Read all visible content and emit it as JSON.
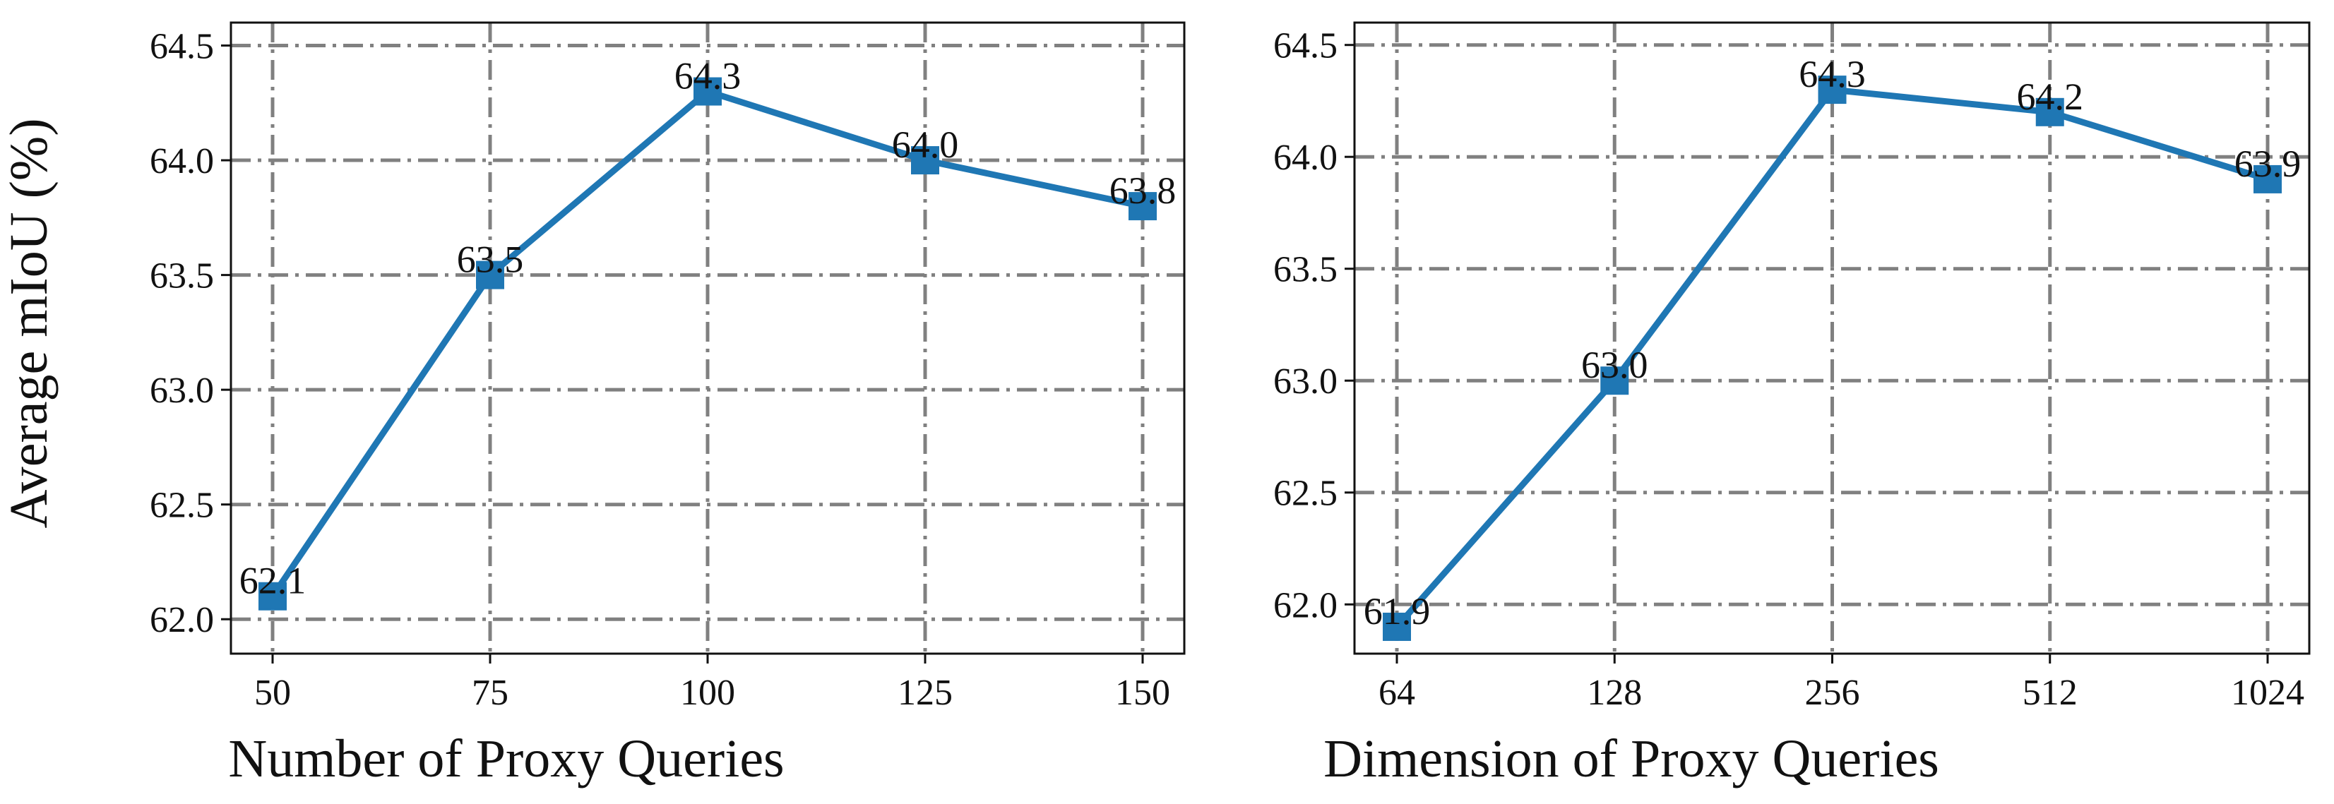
{
  "figure": {
    "ylabel": "Average mIoU (%)"
  },
  "chart_data": [
    {
      "type": "line",
      "title": "",
      "xlabel": "Number of Proxy Queries",
      "ylabel": "Average mIoU (%)",
      "categories": [
        "50",
        "75",
        "100",
        "125",
        "150"
      ],
      "series": [
        {
          "name": "Average mIoU",
          "values": [
            62.1,
            63.5,
            64.3,
            64.0,
            63.8
          ],
          "labels": [
            "62.1",
            "63.5",
            "64.3",
            "64.0",
            "63.8"
          ]
        }
      ],
      "ylim": [
        61.85,
        64.6
      ],
      "yticks": [
        62.0,
        62.5,
        63.0,
        63.5,
        64.0,
        64.5
      ],
      "ytick_labels": [
        "62.0",
        "62.5",
        "63.0",
        "63.5",
        "64.0",
        "64.5"
      ],
      "grid": true,
      "color": "#1f77b4",
      "marker": "square"
    },
    {
      "type": "line",
      "title": "",
      "xlabel": "Dimension of Proxy Queries",
      "ylabel": "",
      "categories": [
        "64",
        "128",
        "256",
        "512",
        "1024"
      ],
      "series": [
        {
          "name": "Average mIoU",
          "values": [
            61.9,
            63.0,
            64.3,
            64.2,
            63.9
          ],
          "labels": [
            "61.9",
            "63.0",
            "64.3",
            "64.2",
            "63.9"
          ]
        }
      ],
      "ylim": [
        61.78,
        64.6
      ],
      "yticks": [
        62.0,
        62.5,
        63.0,
        63.5,
        64.0,
        64.5
      ],
      "ytick_labels": [
        "62.0",
        "62.5",
        "63.0",
        "63.5",
        "64.0",
        "64.5"
      ],
      "grid": true,
      "color": "#1f77b4",
      "marker": "square"
    }
  ]
}
